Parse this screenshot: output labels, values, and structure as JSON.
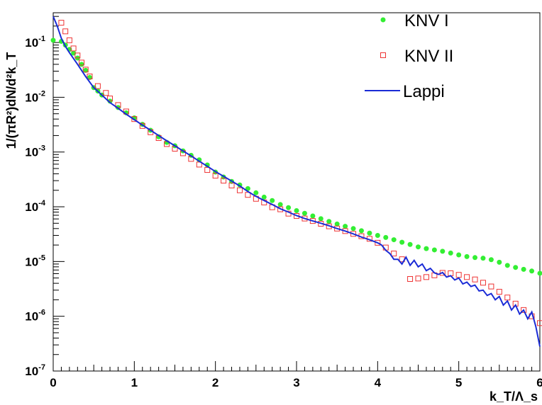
{
  "chart_data": {
    "type": "scatter",
    "xlabel": "k_T/Λ_s",
    "ylabel": "1/(πR²)dN/d²k_T",
    "xlim": [
      0,
      6
    ],
    "ylim": [
      1e-07,
      0.35
    ],
    "yscale": "log",
    "x_ticks": [
      "0",
      "1",
      "2",
      "3",
      "4",
      "5",
      "6"
    ],
    "y_ticks": [
      {
        "base": "10",
        "exp": "-1",
        "value": 0.1
      },
      {
        "base": "10",
        "exp": "-2",
        "value": 0.01
      },
      {
        "base": "10",
        "exp": "-3",
        "value": 0.001
      },
      {
        "base": "10",
        "exp": "-4",
        "value": 0.0001
      },
      {
        "base": "10",
        "exp": "-5",
        "value": 1e-05
      },
      {
        "base": "10",
        "exp": "-6",
        "value": 1e-06
      },
      {
        "base": "10",
        "exp": "-7",
        "value": 1e-07
      }
    ],
    "grid": false,
    "legend_position": "top-right",
    "series": [
      {
        "name": "KNV I",
        "marker": "filled-circle",
        "color": "#33ee33",
        "x": [
          0.0,
          0.1,
          0.15,
          0.2,
          0.25,
          0.3,
          0.35,
          0.4,
          0.45,
          0.5,
          0.55,
          0.6,
          0.7,
          0.8,
          0.9,
          1.0,
          1.1,
          1.2,
          1.3,
          1.4,
          1.5,
          1.6,
          1.7,
          1.8,
          1.9,
          2.0,
          2.1,
          2.2,
          2.3,
          2.4,
          2.5,
          2.6,
          2.7,
          2.8,
          2.9,
          3.0,
          3.1,
          3.2,
          3.3,
          3.4,
          3.5,
          3.6,
          3.7,
          3.8,
          3.9,
          4.0,
          4.1,
          4.2,
          4.3,
          4.4,
          4.5,
          4.6,
          4.7,
          4.8,
          4.9,
          5.0,
          5.1,
          5.2,
          5.3,
          5.4,
          5.5,
          5.6,
          5.7,
          5.8,
          5.9,
          6.0
        ],
        "y": [
          0.11,
          0.105,
          0.09,
          0.075,
          0.064,
          0.052,
          0.04,
          0.031,
          0.023,
          0.015,
          0.013,
          0.011,
          0.0085,
          0.0065,
          0.0052,
          0.0042,
          0.0032,
          0.0025,
          0.0019,
          0.0015,
          0.0013,
          0.00105,
          0.00087,
          0.00072,
          0.00058,
          0.00043,
          0.00035,
          0.00029,
          0.00025,
          0.000215,
          0.00018,
          0.00015,
          0.00013,
          0.00011,
          9.65e-05,
          8.5e-05,
          7.6e-05,
          6.8e-05,
          6.05e-05,
          5.4e-05,
          4.85e-05,
          4.4e-05,
          4e-05,
          3.65e-05,
          3.3e-05,
          3e-05,
          2.75e-05,
          2.5e-05,
          2.25e-05,
          2.05e-05,
          1.85e-05,
          1.72e-05,
          1.63e-05,
          1.54e-05,
          1.43e-05,
          1.32e-05,
          1.23e-05,
          1.18e-05,
          1.15e-05,
          1.08e-05,
          9.7e-06,
          8.5e-06,
          7.8e-06,
          7.2e-06,
          6.7e-06,
          6.1e-06
        ]
      },
      {
        "name": "KNV II",
        "marker": "open-square",
        "color": "#ee3333",
        "x": [
          0.1,
          0.15,
          0.2,
          0.25,
          0.3,
          0.35,
          0.4,
          0.45,
          0.55,
          0.65,
          0.7,
          0.8,
          0.9,
          1.0,
          1.1,
          1.2,
          1.3,
          1.4,
          1.5,
          1.6,
          1.7,
          1.8,
          1.9,
          2.0,
          2.1,
          2.2,
          2.3,
          2.4,
          2.5,
          2.6,
          2.7,
          2.8,
          2.9,
          3.0,
          3.1,
          3.2,
          3.3,
          3.4,
          3.5,
          3.6,
          3.7,
          3.8,
          3.9,
          4.0,
          4.1,
          4.2,
          4.3,
          4.4,
          4.5,
          4.6,
          4.7,
          4.8,
          4.9,
          5.0,
          5.1,
          5.2,
          5.3,
          5.4,
          5.5,
          5.6,
          5.7,
          5.8,
          5.9,
          6.0
        ],
        "y": [
          0.23,
          0.16,
          0.11,
          0.078,
          0.058,
          0.043,
          0.032,
          0.024,
          0.016,
          0.012,
          0.0095,
          0.0072,
          0.0055,
          0.004,
          0.003,
          0.0023,
          0.0018,
          0.0014,
          0.00115,
          0.00095,
          0.00075,
          0.00059,
          0.00047,
          0.00037,
          0.0003,
          0.000245,
          0.0002,
          0.000165,
          0.00014,
          0.00012,
          9.8e-05,
          9e-05,
          7.5e-05,
          6.8e-05,
          6.1e-05,
          5.5e-05,
          4.9e-05,
          4.4e-05,
          4e-05,
          3.6e-05,
          3.2e-05,
          2.9e-05,
          2.6e-05,
          2.2e-05,
          1.8e-05,
          1.4e-05,
          1.1e-05,
          4.8e-06,
          4.9e-06,
          5.2e-06,
          5.6e-06,
          6.2e-06,
          6.1e-06,
          5.7e-06,
          5.2e-06,
          4.7e-06,
          4.1e-06,
          3.5e-06,
          2.8e-06,
          2.2e-06,
          1.7e-06,
          1.3e-06,
          1e-06,
          7.5e-07
        ]
      },
      {
        "name": "Lappi",
        "marker": "line",
        "color": "#1a2bd6",
        "x": [
          0.0,
          0.05,
          0.1,
          0.15,
          0.2,
          0.3,
          0.4,
          0.5,
          0.6,
          0.7,
          0.8,
          0.9,
          1.0,
          1.1,
          1.2,
          1.3,
          1.4,
          1.5,
          1.6,
          1.7,
          1.8,
          1.9,
          2.0,
          2.1,
          2.2,
          2.3,
          2.4,
          2.5,
          2.6,
          2.7,
          2.8,
          2.9,
          3.0,
          3.1,
          3.2,
          3.3,
          3.4,
          3.5,
          3.6,
          3.7,
          3.8,
          3.9,
          4.0,
          4.05,
          4.1,
          4.15,
          4.2,
          4.25,
          4.3,
          4.35,
          4.4,
          4.45,
          4.5,
          4.55,
          4.6,
          4.65,
          4.7,
          4.75,
          4.8,
          4.85,
          4.9,
          4.95,
          5.0,
          5.05,
          5.1,
          5.15,
          5.2,
          5.25,
          5.3,
          5.35,
          5.4,
          5.45,
          5.5,
          5.55,
          5.6,
          5.65,
          5.7,
          5.75,
          5.8,
          5.85,
          5.9,
          5.95,
          6.0
        ],
        "y": [
          0.3,
          0.2,
          0.12,
          0.085,
          0.065,
          0.04,
          0.024,
          0.015,
          0.011,
          0.008,
          0.0063,
          0.0049,
          0.0039,
          0.0031,
          0.0025,
          0.002,
          0.0016,
          0.0013,
          0.00105,
          0.00085,
          0.00068,
          0.00055,
          0.00044,
          0.00036,
          0.000295,
          0.00024,
          0.00019,
          0.000155,
          0.00013,
          0.00011,
          9.2e-05,
          8e-05,
          6.9e-05,
          6.1e-05,
          5.5e-05,
          5e-05,
          4.5e-05,
          4e-05,
          3.6e-05,
          3.2e-05,
          2.8e-05,
          2.5e-05,
          2.2e-05,
          2e-05,
          1.6e-05,
          1.4e-05,
          1.1e-05,
          1.1e-05,
          9e-06,
          1.2e-05,
          8.5e-06,
          1.05e-05,
          8e-06,
          9e-06,
          6.8e-06,
          7.5e-06,
          6.2e-06,
          5.8e-06,
          6.3e-06,
          5.2e-06,
          5.5e-06,
          4.6e-06,
          5e-06,
          3.9e-06,
          4.2e-06,
          3.5e-06,
          3.7e-06,
          2.9e-06,
          3e-06,
          2.4e-06,
          2.6e-06,
          2e-06,
          2.3e-06,
          1.6e-06,
          1.9e-06,
          1.3e-06,
          1.6e-06,
          1.1e-06,
          1.3e-06,
          9e-07,
          1.2e-06,
          6.5e-07,
          2.8e-07
        ]
      }
    ]
  }
}
